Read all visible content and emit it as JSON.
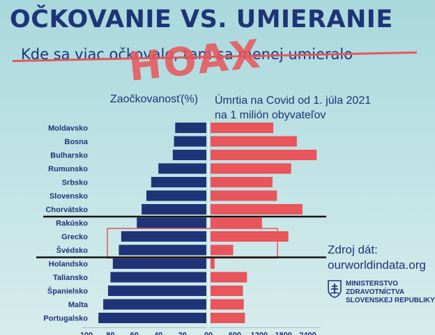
{
  "header": {
    "title": "OČKOVANIE VS. UMIERANIE",
    "subtitle": "Kde sa viac očkovalo, tam sa menej umieralo",
    "stamp": "HOAX"
  },
  "columns": {
    "left_heading": "Zaočkovanosť(%)",
    "right_heading_line1": "Úmrtia na Covid od 1. júla 2021",
    "right_heading_line2": "na 1 milión obyvateľov"
  },
  "source": {
    "label": "Zdroj dát:",
    "value": "ourworldindata.org"
  },
  "ministry": {
    "line1": "MINISTERSTVO",
    "line2": "ZDRAVOTNÍCTVA",
    "line3": "SLOVENSKEJ REPUBLIKY"
  },
  "colors": {
    "navy": "#1f3477",
    "left_bars": "#1f3477",
    "right_bars": "#e8555a",
    "highlight_box": "#e8555a",
    "divider_lines": "#111111"
  },
  "chart_data": {
    "type": "bar",
    "orientation": "horizontal-butterfly",
    "categories": [
      "Moldavsko",
      "Bosna",
      "Bulharsko",
      "Rumunsko",
      "Srbsko",
      "Slovensko",
      "Chorvátsko",
      "Rakúsko",
      "Grecko",
      "Švédsko",
      "Holandsko",
      "Taliansko",
      "Španielsko",
      "Malta",
      "Portugalsko"
    ],
    "series": [
      {
        "name": "Zaočkovanosť(%)",
        "side": "left",
        "values": [
          26,
          27,
          28,
          40,
          46,
          50,
          54,
          58,
          71,
          73,
          78,
          80,
          82,
          86,
          90
        ]
      },
      {
        "name": "Úmrtia na Covid od 1. júla 2021 na 1 milión obyvateľov",
        "side": "right",
        "values": [
          1550,
          2130,
          2620,
          1990,
          1530,
          1640,
          2270,
          1270,
          1920,
          560,
          100,
          900,
          800,
          820,
          850
        ]
      }
    ],
    "left_ticks": [
      "100",
      "80",
      "60",
      "40",
      "20",
      "0"
    ],
    "right_ticks": [
      "0",
      "600",
      "1200",
      "1800",
      "2400"
    ],
    "left_xlim": [
      100,
      0
    ],
    "right_xlim": [
      0,
      3200
    ],
    "highlight_categories": [
      "Grecko",
      "Švédsko"
    ],
    "divider_after_categories": [
      "Chorvátsko",
      "Švédsko"
    ],
    "grid": false
  }
}
